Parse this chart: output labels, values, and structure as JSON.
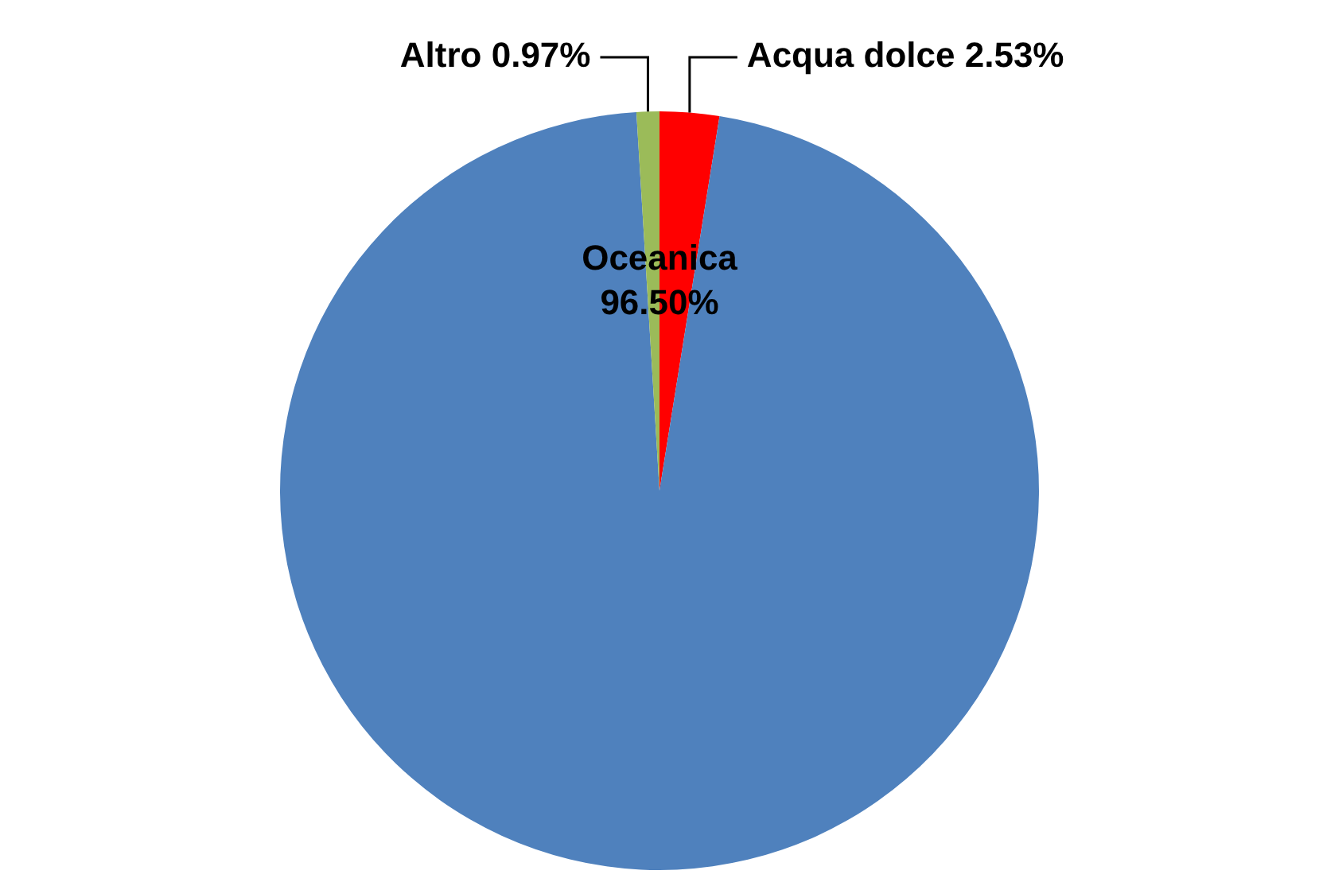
{
  "chart_data": {
    "type": "pie",
    "categories": [
      "Acqua dolce",
      "Oceanica",
      "Altro"
    ],
    "values": [
      2.53,
      96.5,
      0.97
    ],
    "value_labels": [
      "2.53%",
      "96.50%",
      "0.97%"
    ],
    "colors": [
      "#ff0000",
      "#4f81bd",
      "#9bbb59"
    ],
    "legend": false
  }
}
